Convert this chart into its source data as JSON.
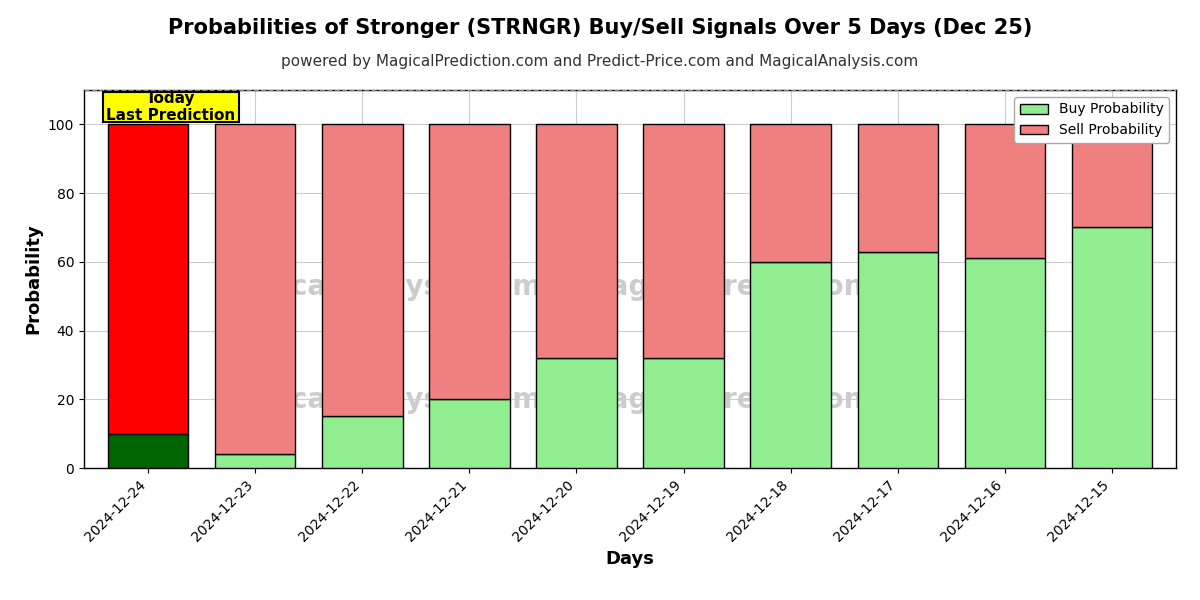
{
  "title": "Probabilities of Stronger (STRNGR) Buy/Sell Signals Over 5 Days (Dec 25)",
  "subtitle": "powered by MagicalPrediction.com and Predict-Price.com and MagicalAnalysis.com",
  "xlabel": "Days",
  "ylabel": "Probability",
  "categories": [
    "2024-12-24",
    "2024-12-23",
    "2024-12-22",
    "2024-12-21",
    "2024-12-20",
    "2024-12-19",
    "2024-12-18",
    "2024-12-17",
    "2024-12-16",
    "2024-12-15"
  ],
  "buy_values": [
    10,
    4,
    15,
    20,
    32,
    32,
    60,
    63,
    61,
    70
  ],
  "sell_values": [
    90,
    96,
    85,
    80,
    68,
    68,
    40,
    37,
    39,
    30
  ],
  "today_index": 0,
  "buy_color_today": "#006400",
  "sell_color_today": "#FF0000",
  "buy_color_normal": "#90EE90",
  "sell_color_normal": "#F08080",
  "bar_edgecolor": "#000000",
  "bar_linewidth": 1.0,
  "today_label": "Today\nLast Prediction",
  "today_box_color": "#FFFF00",
  "today_box_edgecolor": "#000000",
  "legend_buy_label": "Buy Probability",
  "legend_sell_label": "Sell Probability",
  "ylim": [
    0,
    110
  ],
  "yticks": [
    0,
    20,
    40,
    60,
    80,
    100
  ],
  "dashed_line_y": 110,
  "watermark_color": "#cccccc",
  "grid_color": "#cccccc",
  "background_color": "#ffffff",
  "title_fontsize": 15,
  "subtitle_fontsize": 11,
  "axis_label_fontsize": 13,
  "tick_fontsize": 10,
  "legend_fontsize": 10
}
